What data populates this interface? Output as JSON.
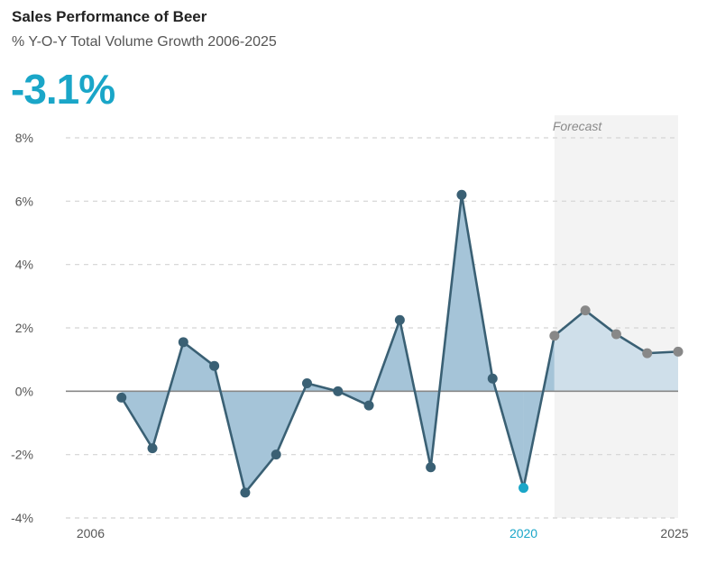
{
  "header": {
    "title": "Sales Performance of Beer",
    "subtitle": "% Y-O-Y Total Volume Growth 2006-2025",
    "kpi_value": "-3.1%"
  },
  "chart_data": {
    "type": "area",
    "title": "Sales Performance of Beer",
    "subtitle": "% Y-O-Y Total Volume Growth 2006-2025",
    "x": [
      2006,
      2007,
      2008,
      2009,
      2010,
      2011,
      2012,
      2013,
      2014,
      2015,
      2016,
      2017,
      2018,
      2019,
      2020,
      2021,
      2022,
      2023,
      2024,
      2025
    ],
    "xlim": [
      2005.2,
      2025
    ],
    "actual": [
      {
        "x": 2007,
        "y": -0.2
      },
      {
        "x": 2008,
        "y": -1.8
      },
      {
        "x": 2009,
        "y": 1.55
      },
      {
        "x": 2010,
        "y": 0.8
      },
      {
        "x": 2011,
        "y": -3.2
      },
      {
        "x": 2012,
        "y": -2.0
      },
      {
        "x": 2013,
        "y": 0.25
      },
      {
        "x": 2014,
        "y": 0.0
      },
      {
        "x": 2015,
        "y": -0.45
      },
      {
        "x": 2016,
        "y": 2.25
      },
      {
        "x": 2017,
        "y": -2.4
      },
      {
        "x": 2018,
        "y": 6.2
      },
      {
        "x": 2019,
        "y": 0.4
      },
      {
        "x": 2020,
        "y": -3.05
      }
    ],
    "forecast": [
      {
        "x": 2021,
        "y": 1.75
      },
      {
        "x": 2022,
        "y": 2.55
      },
      {
        "x": 2023,
        "y": 1.8
      },
      {
        "x": 2024,
        "y": 1.2
      },
      {
        "x": 2025,
        "y": 1.25
      }
    ],
    "highlight_year": 2020,
    "forecast_start": 2021,
    "forecast_label": "Forecast",
    "ylim": [
      -4,
      8
    ],
    "yticks": [
      -4,
      -2,
      0,
      2,
      4,
      6,
      8
    ],
    "ytick_labels": [
      "-4%",
      "-2%",
      "0%",
      "2%",
      "4%",
      "6%",
      "8%"
    ],
    "xtick_labels": [
      {
        "x": 2006,
        "label": "2006"
      },
      {
        "x": 2020,
        "label": "2020"
      },
      {
        "x": 2025,
        "label": "2025"
      }
    ],
    "grid": true,
    "colors": {
      "line": "#3a6074",
      "area_actual": "#a5c4d8",
      "area_forecast": "#cfdfea",
      "forecast_points": "#888888",
      "highlight": "#1aa6c8",
      "forecast_band": "#f3f3f3",
      "zero_line": "#888888",
      "grid": "#d4d4d4"
    }
  }
}
